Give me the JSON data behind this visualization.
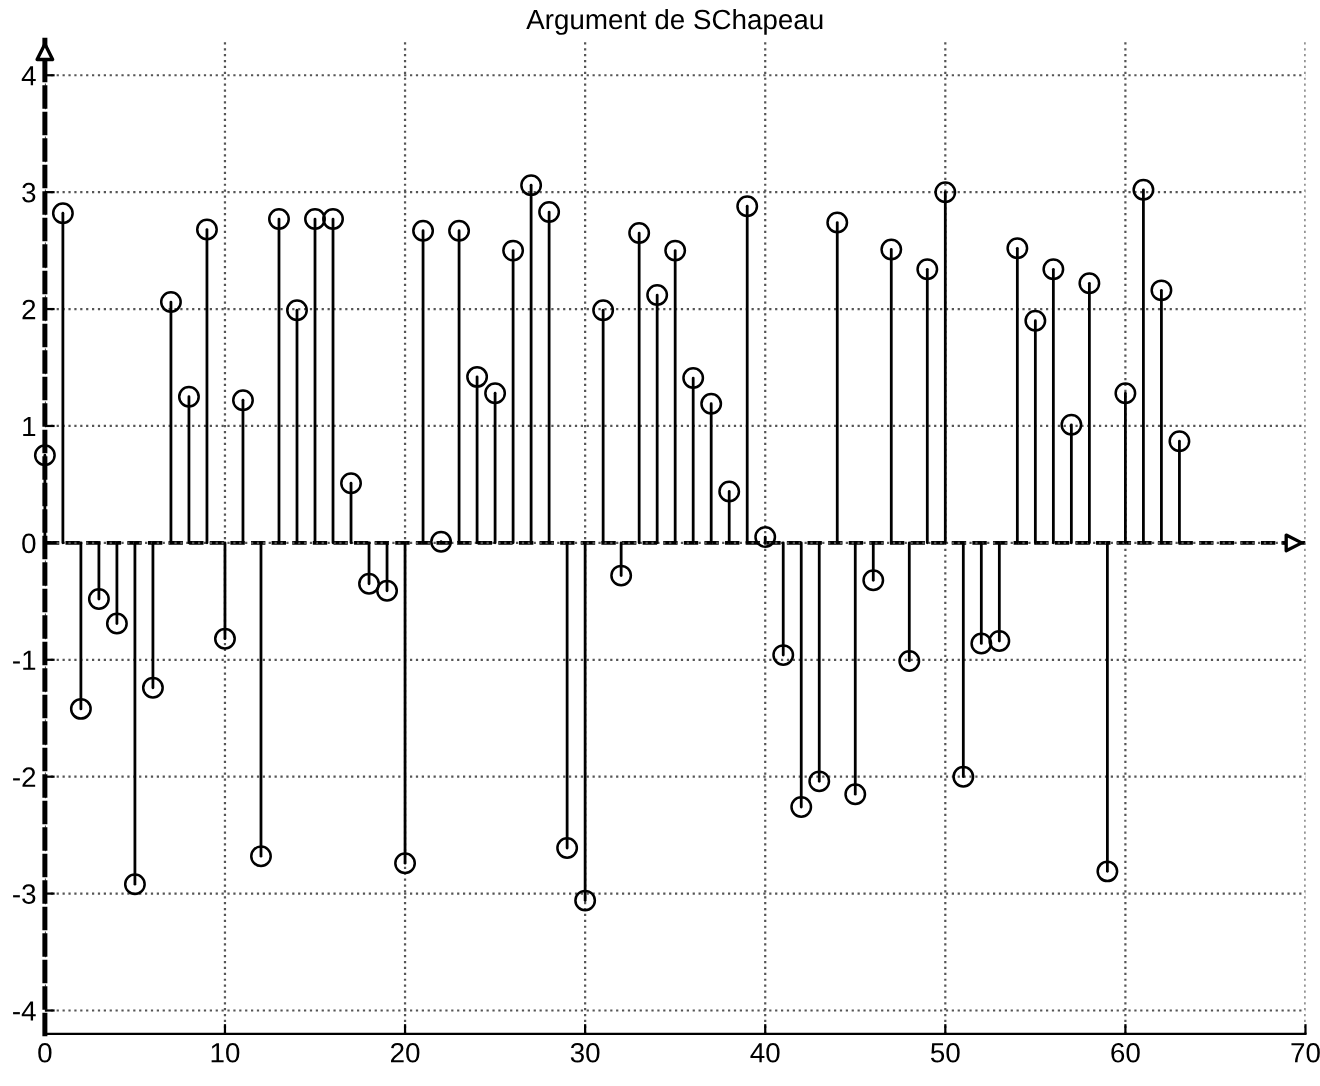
{
  "chart_data": {
    "type": "lollipop",
    "title": "Argument de SChapeau",
    "x": [
      0,
      1,
      2,
      3,
      4,
      5,
      6,
      7,
      8,
      9,
      10,
      11,
      12,
      13,
      14,
      15,
      16,
      17,
      18,
      19,
      20,
      21,
      22,
      23,
      24,
      25,
      26,
      27,
      28,
      29,
      30,
      31,
      32,
      33,
      34,
      35,
      36,
      37,
      38,
      39,
      40,
      41,
      42,
      43,
      44,
      45,
      46,
      47,
      48,
      49,
      50,
      51,
      52,
      53,
      54,
      55,
      56,
      57,
      58,
      59,
      60,
      61,
      62,
      63
    ],
    "values": [
      0.75,
      2.82,
      -1.42,
      -0.48,
      -0.69,
      -2.92,
      -1.24,
      2.06,
      1.25,
      2.68,
      -0.82,
      1.22,
      -2.68,
      2.77,
      1.99,
      2.77,
      2.77,
      0.51,
      -0.35,
      -0.41,
      -2.74,
      2.67,
      0.01,
      2.67,
      1.42,
      1.28,
      2.5,
      3.06,
      2.83,
      -2.61,
      -3.06,
      1.99,
      -0.28,
      2.65,
      2.12,
      2.5,
      1.41,
      1.19,
      0.44,
      2.88,
      0.05,
      -0.96,
      -2.26,
      -2.04,
      2.74,
      -2.15,
      -0.32,
      2.51,
      -1.01,
      2.34,
      3.0,
      -2.0,
      -0.86,
      -0.84,
      2.52,
      1.9,
      2.34,
      1.01,
      2.22,
      -2.81,
      1.28,
      3.02,
      2.16,
      0.87
    ],
    "color": "#000000",
    "marker": "circle",
    "grid": true,
    "ref_lines": [
      {
        "axis": "y",
        "value": 0,
        "line_style": "dashed",
        "color": "#000000"
      }
    ],
    "xlim": [
      0,
      70
    ],
    "xticks": [
      0,
      10,
      20,
      30,
      40,
      50,
      60,
      70
    ],
    "ylim": [
      -4.2,
      4.3
    ],
    "yticks": [
      -4,
      -3,
      -2,
      -1,
      0,
      1,
      2,
      3,
      4
    ]
  }
}
